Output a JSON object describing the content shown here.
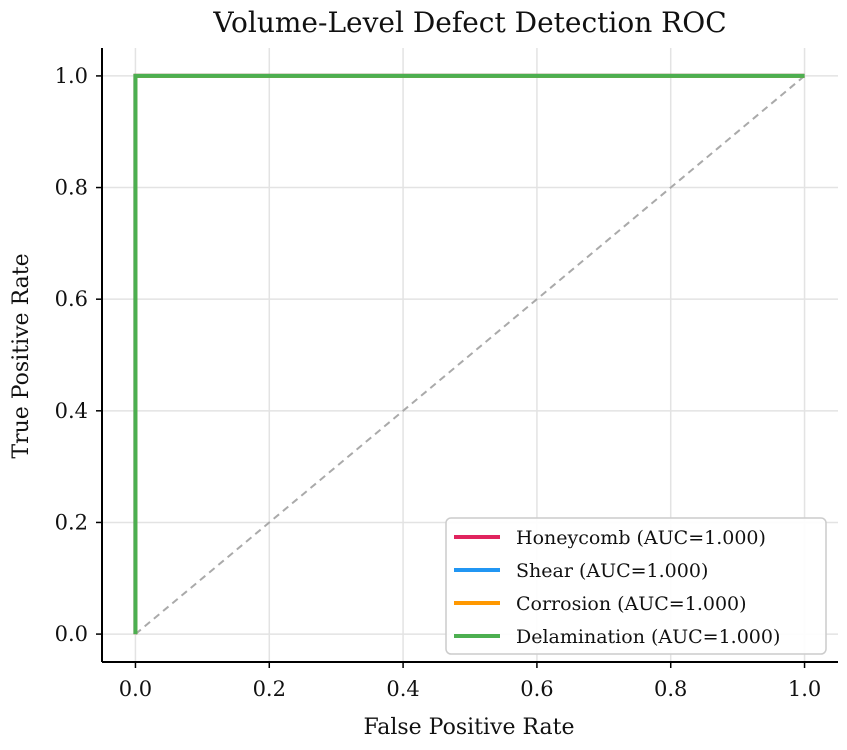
{
  "chart_data": {
    "type": "line",
    "title": "Volume-Level Defect Detection ROC",
    "xlabel": "False Positive Rate",
    "ylabel": "True Positive Rate",
    "xlim": [
      -0.05,
      1.05
    ],
    "ylim": [
      -0.05,
      1.05
    ],
    "grid": true,
    "legend_position": "bottom-right",
    "x_ticks": [
      0.0,
      0.2,
      0.4,
      0.6,
      0.8,
      1.0
    ],
    "y_ticks": [
      0.0,
      0.2,
      0.4,
      0.6,
      0.8,
      1.0
    ],
    "x_tick_labels": [
      "0.0",
      "0.2",
      "0.4",
      "0.6",
      "0.8",
      "1.0"
    ],
    "y_tick_labels": [
      "0.0",
      "0.2",
      "0.4",
      "0.6",
      "0.8",
      "1.0"
    ],
    "reference_line": {
      "name": "chance",
      "x": [
        0,
        1
      ],
      "y": [
        0,
        1
      ],
      "color": "#aaaaaa",
      "style": "dashed"
    },
    "series": [
      {
        "name": "Honeycomb",
        "legend_label": "Honeycomb (AUC=1.000)",
        "auc": 1.0,
        "color": "#e0245e",
        "x": [
          0,
          0,
          1
        ],
        "y": [
          0,
          1,
          1
        ]
      },
      {
        "name": "Shear",
        "legend_label": "Shear (AUC=1.000)",
        "auc": 1.0,
        "color": "#2196f3",
        "x": [
          0,
          0,
          1
        ],
        "y": [
          0,
          1,
          1
        ]
      },
      {
        "name": "Corrosion",
        "legend_label": "Corrosion (AUC=1.000)",
        "auc": 1.0,
        "color": "#ff9800",
        "x": [
          0,
          0,
          1
        ],
        "y": [
          0,
          1,
          1
        ]
      },
      {
        "name": "Delamination",
        "legend_label": "Delamination (AUC=1.000)",
        "auc": 1.0,
        "color": "#4caf50",
        "x": [
          0,
          0,
          1
        ],
        "y": [
          0,
          1,
          1
        ]
      }
    ]
  }
}
